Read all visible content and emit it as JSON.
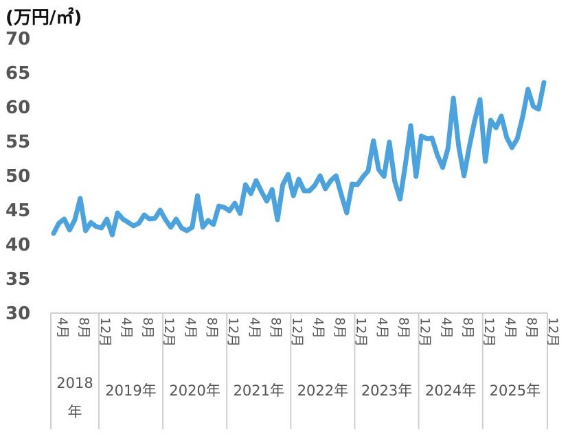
{
  "chart_data": {
    "type": "line",
    "unit_label": "(万円/㎡)",
    "ylim": [
      30,
      70
    ],
    "y_ticks": [
      "30",
      "35",
      "40",
      "45",
      "50",
      "55",
      "60",
      "65",
      "70"
    ],
    "x_month_labels": [
      "4月",
      "8月",
      "12月",
      "4月",
      "8月",
      "12月",
      "4月",
      "8月",
      "12月",
      "4月",
      "8月",
      "12月",
      "4月",
      "8月",
      "12月",
      "4月",
      "8月",
      "12月",
      "4月",
      "8月",
      "12月",
      "4月",
      "8月",
      "12月"
    ],
    "x_year_labels": [
      {
        "line1": "2018",
        "line2": "年"
      },
      {
        "line1": "2019年",
        "line2": ""
      },
      {
        "line1": "2020年",
        "line2": ""
      },
      {
        "line1": "2021年",
        "line2": ""
      },
      {
        "line1": "2022年",
        "line2": ""
      },
      {
        "line1": "2023年",
        "line2": ""
      },
      {
        "line1": "2024年",
        "line2": ""
      },
      {
        "line1": "2025年",
        "line2": ""
      }
    ],
    "grid": false,
    "series": [
      {
        "color": "#4aa3df",
        "values": [
          41.5,
          43.0,
          43.6,
          42.0,
          43.5,
          46.6,
          41.9,
          43.1,
          42.5,
          42.3,
          43.6,
          41.3,
          44.5,
          43.6,
          43.1,
          42.6,
          43.0,
          44.2,
          43.6,
          43.7,
          44.9,
          43.5,
          42.4,
          43.6,
          42.3,
          41.9,
          42.4,
          47.0,
          42.4,
          43.4,
          42.8,
          45.5,
          45.3,
          44.8,
          45.9,
          44.4,
          48.6,
          47.3,
          49.2,
          47.6,
          46.2,
          47.9,
          43.5,
          48.6,
          50.1,
          47.0,
          49.4,
          47.7,
          47.7,
          48.5,
          49.9,
          48.0,
          49.2,
          49.9,
          47.1,
          44.5,
          48.7,
          48.6,
          49.7,
          50.6,
          55.0,
          50.8,
          49.8,
          54.8,
          49.1,
          46.5,
          51.5,
          57.2,
          49.8,
          55.7,
          55.3,
          55.4,
          52.9,
          51.1,
          53.9,
          61.2,
          54.2,
          49.9,
          54.1,
          57.9,
          61.0,
          52.0,
          58.0,
          56.9,
          58.6,
          55.5,
          54.0,
          55.3,
          58.5,
          62.5,
          60.0,
          59.6,
          63.5
        ]
      }
    ]
  }
}
